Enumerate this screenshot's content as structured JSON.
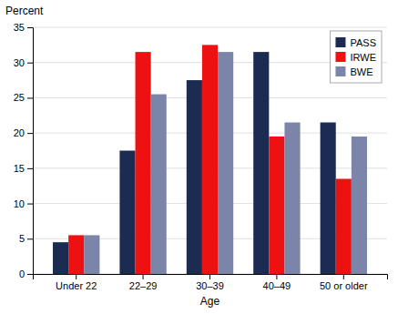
{
  "chart_data": {
    "type": "bar",
    "xlabel": "Age",
    "ylabel": "Percent",
    "categories": [
      "Under 22",
      "22–29",
      "30–39",
      "40–49",
      "50 or older"
    ],
    "series": [
      {
        "name": "PASS",
        "color": "#1c2b52",
        "values": [
          4.5,
          17.5,
          27.5,
          31.5,
          21.5
        ]
      },
      {
        "name": "IRWE",
        "color": "#ee1111",
        "values": [
          5.5,
          31.5,
          32.5,
          19.5,
          13.5
        ]
      },
      {
        "name": "BWE",
        "color": "#7b85aa",
        "values": [
          5.5,
          25.5,
          31.5,
          21.5,
          19.5
        ]
      }
    ],
    "ylim": [
      0,
      35
    ],
    "yticks": [
      0,
      5,
      10,
      15,
      20,
      25,
      30,
      35
    ],
    "grid": true,
    "legend": "upper right"
  }
}
